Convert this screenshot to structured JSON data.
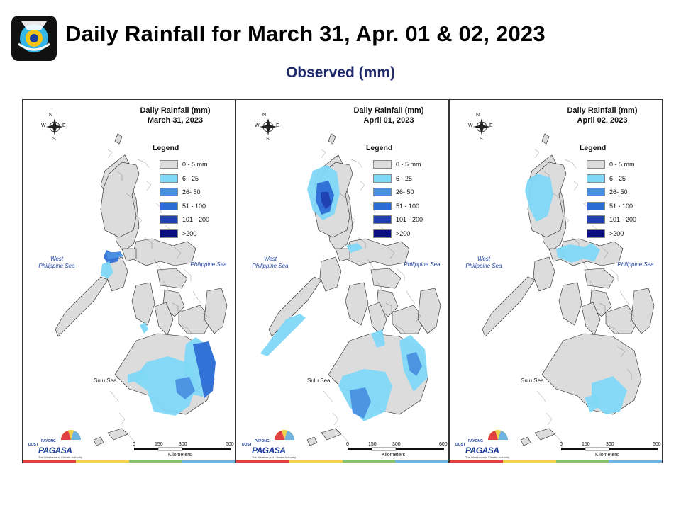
{
  "header": {
    "title": "Daily Rainfall for March 31, Apr. 01 & 02, 2023",
    "subtitle": "Observed (mm)"
  },
  "legend": {
    "title": "Legend",
    "items": [
      {
        "label": "0 - 5 mm",
        "color": "#dcdcdc"
      },
      {
        "label": "6 - 25",
        "color": "#7fd8f7"
      },
      {
        "label": "26- 50",
        "color": "#4a90e2"
      },
      {
        "label": "51 - 100",
        "color": "#2d6bd4"
      },
      {
        "label": "101 - 200",
        "color": "#1f3fae"
      },
      {
        "label": ">200",
        "color": "#0a0f80"
      }
    ]
  },
  "panels": [
    {
      "title_line1": "Daily Rainfall (mm)",
      "title_line2": "March 31, 2023"
    },
    {
      "title_line1": "Daily Rainfall (mm)",
      "title_line2": "April 01, 2023"
    },
    {
      "title_line1": "Daily Rainfall (mm)",
      "title_line2": "April 02, 2023"
    }
  ],
  "map_labels": {
    "west_sea_line1": "West",
    "west_sea_line2": "Philippine Sea",
    "east_sea": "Philippine Sea",
    "sulu_sea": "Sulu Sea",
    "compass_n": "N",
    "compass_e": "E",
    "compass_s": "S",
    "compass_w": "W"
  },
  "scale_bar": {
    "ticks": [
      "0",
      "150",
      "300",
      "600"
    ],
    "unit": "Kilometers"
  },
  "branding": {
    "dost": "DOST",
    "payong": "PAYONG",
    "pagasa": "PAGASA",
    "tagline": "The Weather and Climate Authority"
  },
  "colors": {
    "land_gray": "#dcdcdc",
    "bar": [
      "#e04040",
      "#f2d24b",
      "#8cc06b",
      "#6fb3e3"
    ]
  }
}
